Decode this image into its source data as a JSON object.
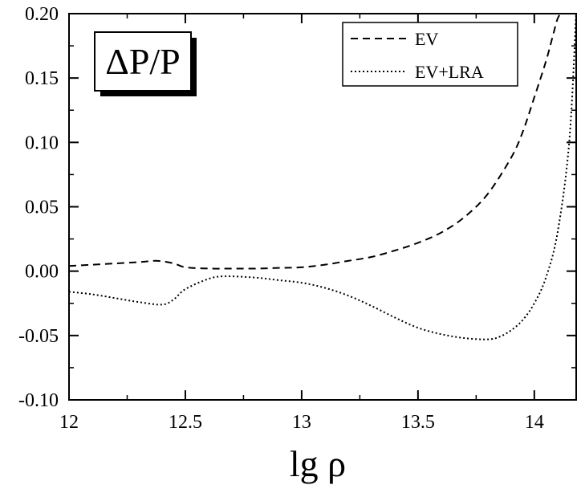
{
  "chart_data": {
    "type": "line",
    "title": "ΔP/P",
    "xlabel": "lg ρ",
    "ylabel": "",
    "xlim": [
      12.0,
      14.18
    ],
    "ylim": [
      -0.1,
      0.2
    ],
    "x_ticks": [
      12,
      12.5,
      13,
      13.5,
      14
    ],
    "x_tick_labels": [
      "12",
      "12.5",
      "13",
      "13.5",
      "14"
    ],
    "y_ticks": [
      -0.1,
      -0.05,
      0.0,
      0.05,
      0.1,
      0.15,
      0.2
    ],
    "y_tick_labels": [
      "-0.10",
      "-0.05",
      "0.00",
      "0.05",
      "0.10",
      "0.15",
      "0.20"
    ],
    "grid": false,
    "legend_position": "top-right",
    "series": [
      {
        "name": "EV",
        "style": "dashed",
        "color": "#000000",
        "x": [
          12.0,
          12.1,
          12.2,
          12.3,
          12.38,
          12.45,
          12.5,
          12.6,
          12.7,
          12.8,
          12.9,
          13.0,
          13.1,
          13.2,
          13.3,
          13.4,
          13.5,
          13.6,
          13.7,
          13.8,
          13.9,
          13.95,
          14.0,
          14.05,
          14.08,
          14.1,
          14.12
        ],
        "y": [
          0.004,
          0.005,
          0.006,
          0.007,
          0.008,
          0.006,
          0.003,
          0.002,
          0.002,
          0.002,
          0.0025,
          0.003,
          0.005,
          0.008,
          0.011,
          0.016,
          0.022,
          0.03,
          0.042,
          0.06,
          0.088,
          0.108,
          0.135,
          0.163,
          0.183,
          0.196,
          0.202
        ]
      },
      {
        "name": "EV+LRA",
        "style": "dotted",
        "color": "#000000",
        "x": [
          12.0,
          12.1,
          12.2,
          12.3,
          12.4,
          12.45,
          12.5,
          12.6,
          12.67,
          12.8,
          12.9,
          13.0,
          13.1,
          13.2,
          13.3,
          13.4,
          13.5,
          13.6,
          13.7,
          13.8,
          13.85,
          13.9,
          13.95,
          14.0,
          14.05,
          14.1,
          14.15,
          14.18
        ],
        "y": [
          -0.016,
          -0.018,
          -0.021,
          -0.024,
          -0.026,
          -0.022,
          -0.014,
          -0.006,
          -0.004,
          -0.005,
          -0.007,
          -0.009,
          -0.013,
          -0.019,
          -0.027,
          -0.036,
          -0.044,
          -0.049,
          -0.052,
          -0.053,
          -0.051,
          -0.046,
          -0.038,
          -0.025,
          -0.005,
          0.03,
          0.1,
          0.2
        ]
      }
    ]
  }
}
